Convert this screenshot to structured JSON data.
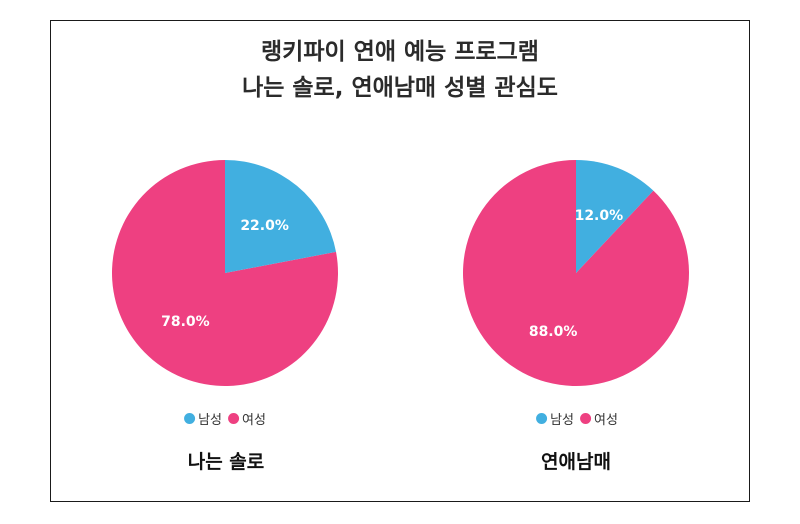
{
  "title_line1": "랭키파이 연애 예능 프로그램",
  "title_line2": "나는 솔로, 연애남매 성별 관심도",
  "colors": {
    "male": "#41afe0",
    "female": "#ee4081"
  },
  "legend": {
    "male": "남성",
    "female": "여성"
  },
  "charts": [
    {
      "caption": "나는 솔로",
      "male_label": "22.0%",
      "female_label": "78.0%"
    },
    {
      "caption": "연애남매",
      "male_label": "12.0%",
      "female_label": "88.0%"
    }
  ],
  "chart_data": [
    {
      "type": "pie",
      "title": "나는 솔로",
      "categories": [
        "남성",
        "여성"
      ],
      "values": [
        22.0,
        78.0
      ],
      "colors": [
        "#41afe0",
        "#ee4081"
      ],
      "legend_position": "bottom"
    },
    {
      "type": "pie",
      "title": "연애남매",
      "categories": [
        "남성",
        "여성"
      ],
      "values": [
        12.0,
        88.0
      ],
      "colors": [
        "#41afe0",
        "#ee4081"
      ],
      "legend_position": "bottom"
    }
  ]
}
